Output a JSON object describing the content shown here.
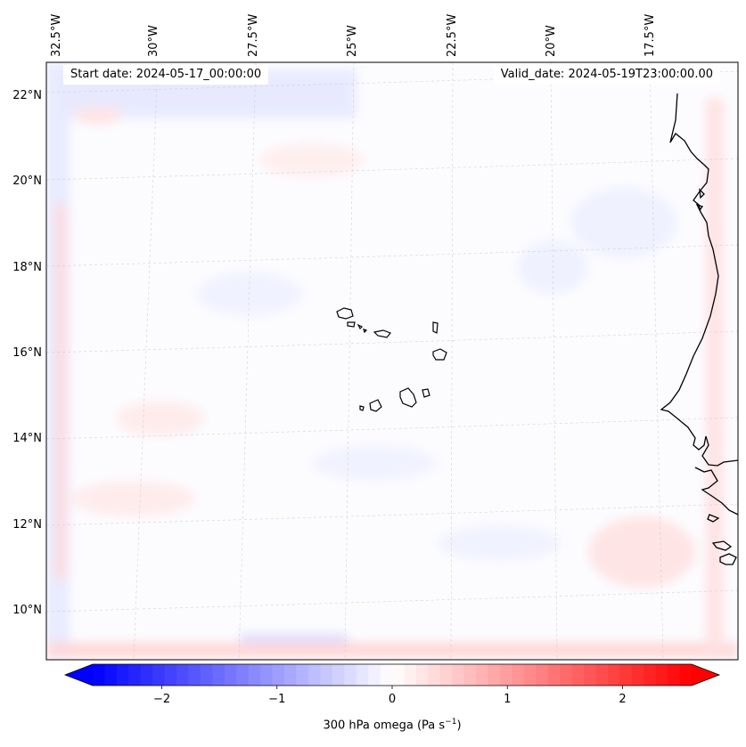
{
  "header": {
    "start_date": "Start date: 2024-05-17_00:00:00",
    "valid_date": "Valid_date: 2024-05-19T23:00:00.00"
  },
  "map": {
    "projection": "lambert-conformal",
    "field": "300 hPa omega",
    "longitude_labels": [
      "32.5°W",
      "30°W",
      "27.5°W",
      "25°W",
      "22.5°W",
      "20°W",
      "17.5°W"
    ],
    "latitude_labels": [
      "22°N",
      "20°N",
      "18°N",
      "16°N",
      "14°N",
      "12°N",
      "10°N"
    ],
    "features": [
      "cabo-verde-islands",
      "west-africa-coastline"
    ],
    "gridlines": true
  },
  "colorbar": {
    "label_main": "300 hPa omega (Pa s",
    "label_sup": "−1",
    "label_end": ")",
    "ticks": [
      "−2",
      "−1",
      "0",
      "1",
      "2"
    ],
    "tick_values": [
      -2,
      -1,
      0,
      1,
      2
    ],
    "range": [
      -2.6,
      2.6
    ],
    "colormap": "bwr",
    "extend": "both",
    "colors": {
      "min": "#0000ff",
      "mid": "#ffffff",
      "max": "#ff0000"
    }
  }
}
